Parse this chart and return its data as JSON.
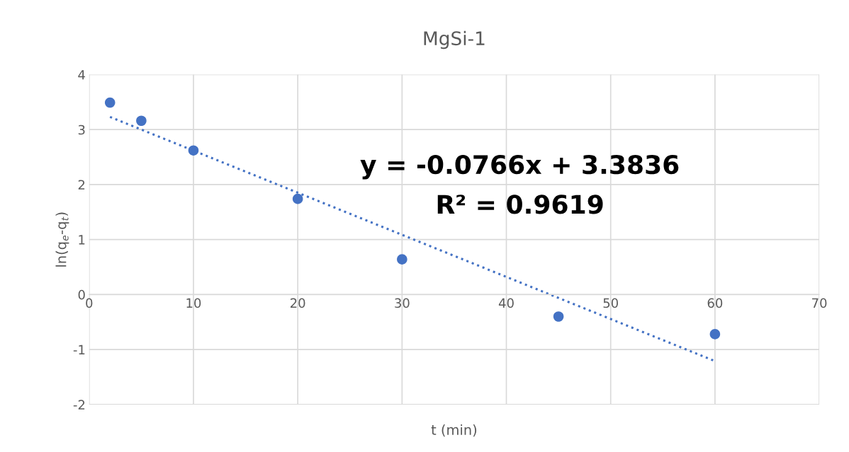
{
  "chart_data": {
    "type": "scatter",
    "title": "MgSi-1",
    "xlabel": "t (min)",
    "ylabel": "ln(q$_{e}$-q$_{t}$)",
    "xlim": [
      0,
      70
    ],
    "xticks": [
      0,
      10,
      20,
      30,
      40,
      50,
      60,
      70
    ],
    "ylim": [
      -2,
      4
    ],
    "yticks": [
      -2,
      -1,
      0,
      1,
      2,
      3,
      4
    ],
    "grid": true,
    "series": [
      {
        "marker": "circle",
        "color": "#4472c4",
        "x": [
          2,
          5,
          10,
          20,
          30,
          45,
          60
        ],
        "values": [
          3.49,
          3.16,
          2.62,
          1.74,
          0.64,
          -0.4,
          -0.72
        ]
      },
      {
        "type": "line",
        "marker": "none",
        "color": "#4472c4",
        "line_style": "dotted",
        "x": [
          2,
          60
        ],
        "values": [
          3.23,
          -1.21
        ]
      }
    ],
    "annotations": [
      "y = -0.0766x + 3.3836",
      "R² = 0.9619"
    ]
  }
}
